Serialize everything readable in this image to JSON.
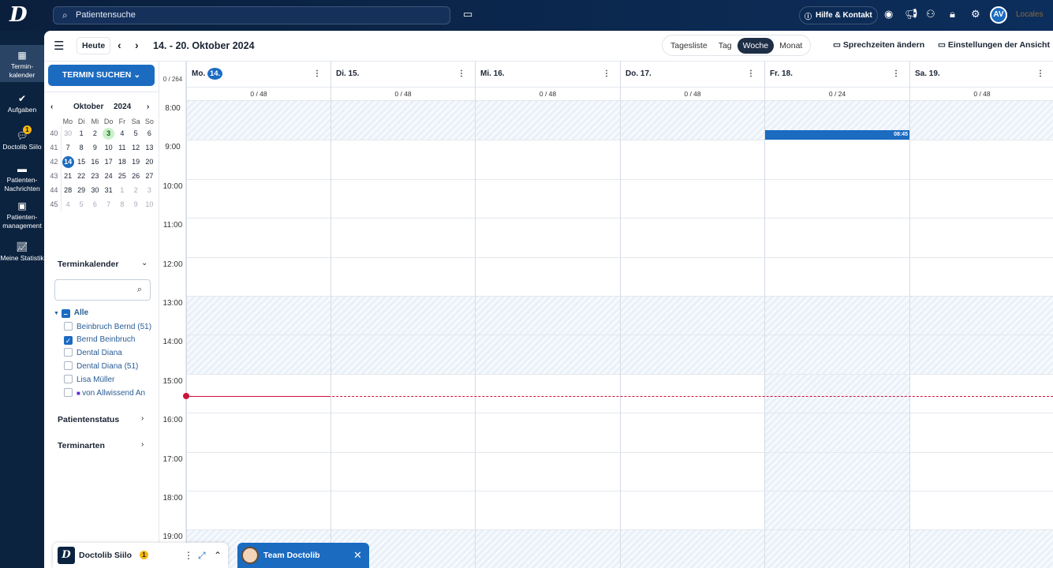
{
  "topbar": {
    "logo": "D",
    "search_placeholder": "Patientensuche",
    "help_label": "Hilfe & Kontakt",
    "avatar": "AV",
    "locales": "Locales"
  },
  "nav": [
    {
      "label": "Termin-\nkalender",
      "icon": "calendar-icon"
    },
    {
      "label": "Aufgaben",
      "icon": "check-circle-icon"
    },
    {
      "label": "Doctolib Siilo",
      "icon": "chat-bubbles-icon",
      "badge": "1"
    },
    {
      "label": "Patienten-\nNachrichten",
      "icon": "message-icon"
    },
    {
      "label": "Patienten-\nmanagement",
      "icon": "clipboard-user-icon"
    },
    {
      "label": "Meine Statistik",
      "icon": "line-chart-icon"
    }
  ],
  "toolbar": {
    "today": "Heute",
    "date_range": "14. - 20. Oktober 2024",
    "views": [
      "Tagesliste",
      "Tag",
      "Woche",
      "Monat"
    ],
    "active_view": "Woche",
    "office_hours": "Sprechzeiten ändern",
    "view_settings": "Einstellungen der Ansicht"
  },
  "sidebar": {
    "search_button": "TERMIN SUCHEN",
    "mini_month": "Oktober",
    "mini_year": "2024",
    "weekdays": [
      "Mo",
      "Di",
      "Mi",
      "Do",
      "Fr",
      "Sa",
      "So"
    ],
    "weeks": [
      {
        "wk": "40",
        "days": [
          "30",
          "1",
          "2",
          "3",
          "4",
          "5",
          "6"
        ]
      },
      {
        "wk": "41",
        "days": [
          "7",
          "8",
          "9",
          "10",
          "11",
          "12",
          "13"
        ]
      },
      {
        "wk": "42",
        "days": [
          "14",
          "15",
          "16",
          "17",
          "18",
          "19",
          "20"
        ]
      },
      {
        "wk": "43",
        "days": [
          "21",
          "22",
          "23",
          "24",
          "25",
          "26",
          "27"
        ]
      },
      {
        "wk": "44",
        "days": [
          "28",
          "29",
          "30",
          "31",
          "1",
          "2",
          "3"
        ]
      },
      {
        "wk": "45",
        "days": [
          "4",
          "5",
          "6",
          "7",
          "8",
          "9",
          "10"
        ]
      }
    ],
    "calendar_section": "Terminkalender",
    "all_label": "Alle",
    "calendars": [
      {
        "name": "Beinbruch Bernd (51)",
        "checked": false
      },
      {
        "name": "Bernd Beinbruch",
        "checked": true
      },
      {
        "name": "Dental Diana",
        "checked": false
      },
      {
        "name": "Dental Diana (51)",
        "checked": false
      },
      {
        "name": "Lisa Müller",
        "checked": false
      },
      {
        "name": "von Allwissend An",
        "checked": false,
        "video": true
      }
    ],
    "patient_status": "Patientenstatus",
    "appointment_types": "Terminarten"
  },
  "week": {
    "total": "0 / 264",
    "days": [
      {
        "label": "Mo.",
        "num": "14.",
        "count": "0 / 48"
      },
      {
        "label": "Di. 15.",
        "count": "0 / 48"
      },
      {
        "label": "Mi. 16.",
        "count": "0 / 48"
      },
      {
        "label": "Do. 17.",
        "count": "0 / 48"
      },
      {
        "label": "Fr. 18.",
        "count": "0 / 24"
      },
      {
        "label": "Sa. 19.",
        "count": "0 / 48"
      }
    ],
    "hours": [
      "8:00",
      "9:00",
      "10:00",
      "11:00",
      "12:00",
      "13:00",
      "14:00",
      "15:00",
      "16:00",
      "17:00",
      "18:00",
      "19:00"
    ],
    "event": {
      "day": "Fr. 18.",
      "time": "08:45"
    }
  },
  "widgets": {
    "siilo_title": "Doctolib Siilo",
    "siilo_badge": "1",
    "team_title": "Team Doctolib"
  },
  "colors": {
    "primary": "#1b6bc1",
    "nav": "#0c2340",
    "now": "#d0103a"
  }
}
